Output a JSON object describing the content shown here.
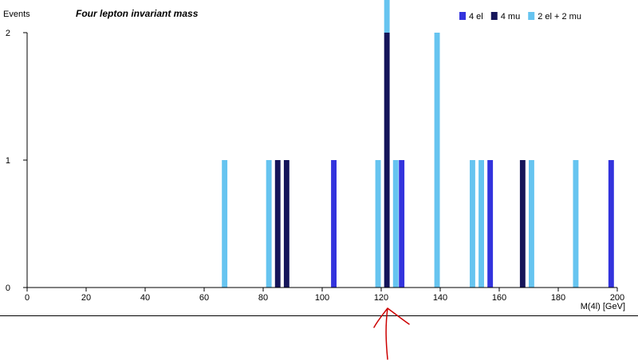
{
  "chart_data": {
    "type": "bar",
    "title": "Four lepton invariant mass",
    "xlabel": "M(4l) [GeV]",
    "ylabel": "Events",
    "xlim": [
      0,
      200
    ],
    "ylim": [
      0,
      2
    ],
    "x_ticks": [
      "0",
      "20",
      "40",
      "60",
      "80",
      "100",
      "120",
      "140",
      "160",
      "180",
      "200"
    ],
    "y_ticks": [
      "0",
      "1",
      "2"
    ],
    "bin_width": 2,
    "legend_position": "top-right",
    "grid": false,
    "stacked": true,
    "series": [
      {
        "name": "4 el",
        "color": "#3333dd",
        "points": [
          {
            "x": 104,
            "y": 1
          },
          {
            "x": 127,
            "y": 1
          },
          {
            "x": 157,
            "y": 1
          },
          {
            "x": 198,
            "y": 1
          }
        ]
      },
      {
        "name": "4 mu",
        "color": "#15155a",
        "points": [
          {
            "x": 85,
            "y": 1
          },
          {
            "x": 88,
            "y": 1
          },
          {
            "x": 122,
            "y": 2
          },
          {
            "x": 168,
            "y": 1
          }
        ]
      },
      {
        "name": "2 el + 2 mu",
        "color": "#66c4f0",
        "points": [
          {
            "x": 67,
            "y": 1
          },
          {
            "x": 82,
            "y": 1
          },
          {
            "x": 119,
            "y": 1
          },
          {
            "x": 122,
            "y": 1
          },
          {
            "x": 125,
            "y": 1
          },
          {
            "x": 139,
            "y": 2
          },
          {
            "x": 151,
            "y": 1
          },
          {
            "x": 154,
            "y": 1
          },
          {
            "x": 171,
            "y": 1
          },
          {
            "x": 186,
            "y": 1
          }
        ]
      }
    ]
  }
}
